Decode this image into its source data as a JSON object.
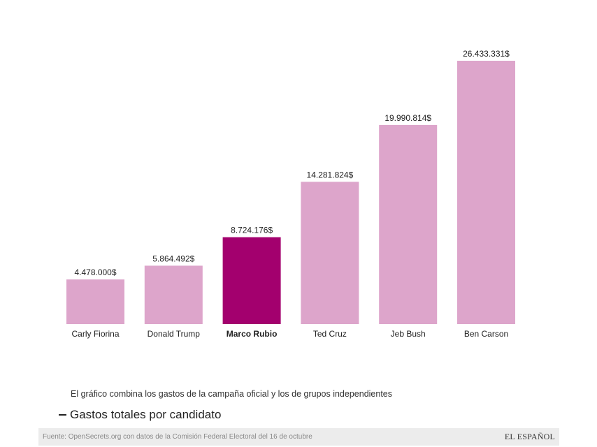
{
  "chart_data": {
    "type": "bar",
    "title": "Gastos totales por candidato",
    "subtitle": "El gráfico combina los gastos de la campaña oficial y los de grupos independientes",
    "xlabel": "",
    "ylabel": "",
    "categories": [
      "Carly Fiorina",
      "Donald Trump",
      "Marco Rubio",
      "Ted Cruz",
      "Jeb Bush",
      "Ben Carson"
    ],
    "values": [
      4478000,
      5864492,
      8724176,
      14281824,
      19990814,
      26433331
    ],
    "value_labels": [
      "4.478.000$",
      "5.864.492$",
      "8.724.176$",
      "14.281.824$",
      "19.990.814$",
      "26.433.331$"
    ],
    "highlight": "Marco Rubio",
    "ylim": [
      0,
      26433331
    ],
    "grid": false,
    "colors": {
      "bar": "#dda5cb",
      "highlight": "#a3006e"
    }
  },
  "footer": {
    "source": "Fuente: OpenSecrets.org con datos de la Comisión Federal Electoral del 16 de octubre",
    "brand": "EL ESPAÑOL"
  }
}
